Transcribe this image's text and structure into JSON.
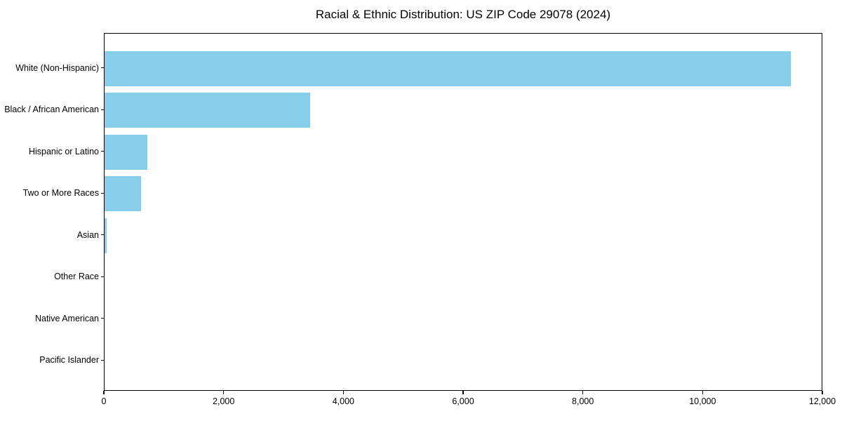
{
  "title": "Racial & Ethnic Distribution: US ZIP Code 29078 (2024)",
  "chart_data": {
    "type": "bar",
    "orientation": "horizontal",
    "title": "Racial & Ethnic Distribution: US ZIP Code 29078 (2024)",
    "categories": [
      "White (Non-Hispanic)",
      "Black / African American",
      "Hispanic or Latino",
      "Two or More Races",
      "Asian",
      "Other Race",
      "Native American",
      "Pacific Islander"
    ],
    "values": [
      11460,
      3435,
      715,
      605,
      30,
      0,
      0,
      0
    ],
    "xlabel": "",
    "ylabel": "",
    "xlim": [
      0,
      12000
    ],
    "xticks": [
      0,
      2000,
      4000,
      6000,
      8000,
      10000,
      12000
    ],
    "xtick_labels": [
      "0",
      "2,000",
      "4,000",
      "6,000",
      "8,000",
      "10,000",
      "12,000"
    ],
    "bar_color": "#87CEEB",
    "background_color": "#ffffff",
    "text_color": "#000000",
    "grid": false,
    "legend": null
  }
}
